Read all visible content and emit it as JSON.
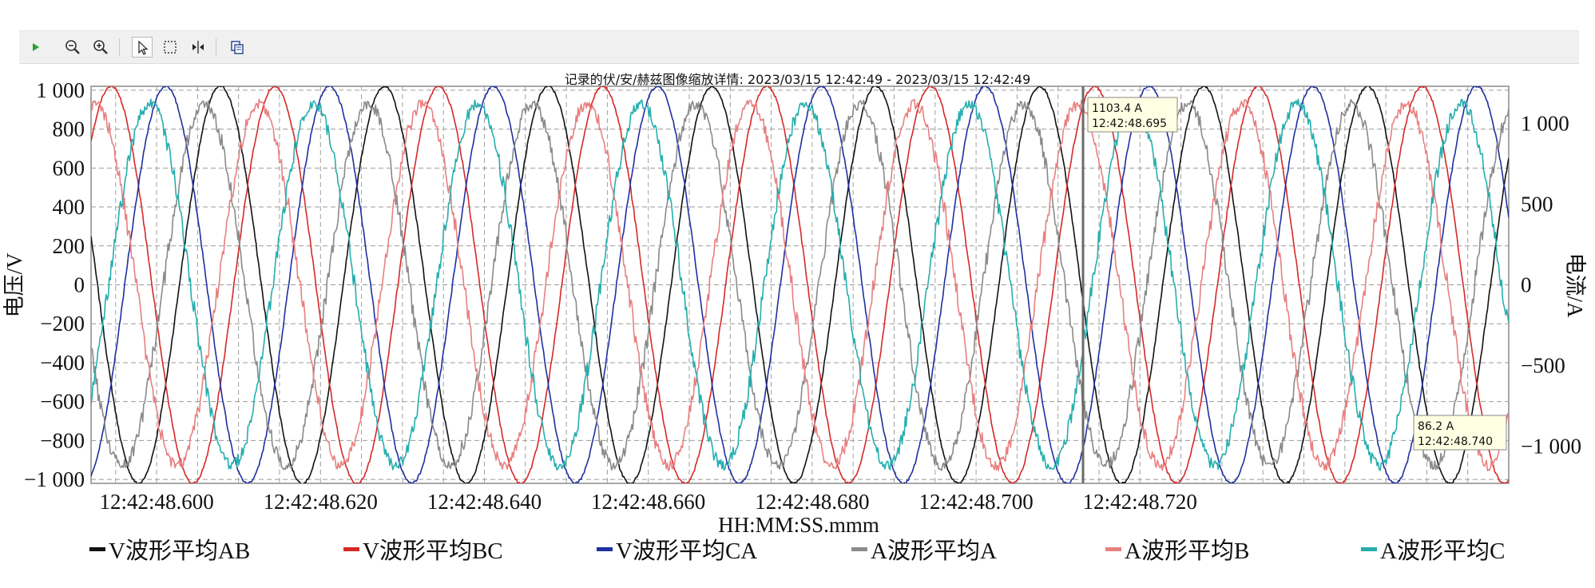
{
  "toolbar": {
    "buttons": [
      {
        "name": "play-button",
        "icon": "play-icon"
      },
      {
        "name": "zoom-out-button",
        "icon": "zoom-out-icon"
      },
      {
        "name": "zoom-in-button",
        "icon": "zoom-in-icon"
      },
      {
        "name": "pointer-tool-button",
        "icon": "cursor-arrow-icon"
      },
      {
        "name": "box-select-tool-button",
        "icon": "selection-box-icon"
      },
      {
        "name": "cursor-measure-tool-button",
        "icon": "cursor-measure-icon"
      },
      {
        "name": "copy-button",
        "icon": "copy-icon"
      }
    ]
  },
  "chart_data": {
    "type": "line",
    "title": "记录的伏/安/赫兹图像缩放详情:  2023/03/15 12:42:49 - 2023/03/15 12:42:49",
    "xlabel": "HH:MM:SS.mmm",
    "ylabel_left": "电压/V",
    "ylabel_right": "电流/A",
    "x_range_ms": [
      48.592,
      48.765
    ],
    "x_time_prefix": "12:42:",
    "x_ticks": [
      "12:42:48.600",
      "12:42:48.620",
      "12:42:48.640",
      "12:42:48.660",
      "12:42:48.680",
      "12:42:48.700",
      "12:42:48.720"
    ],
    "x_tick_values": [
      48.6,
      48.62,
      48.64,
      48.66,
      48.68,
      48.7,
      48.72
    ],
    "ylim_left": [
      -1020,
      1020
    ],
    "yticks_left": [
      1000,
      800,
      600,
      400,
      200,
      0,
      -200,
      -400,
      -600,
      -800,
      -1000
    ],
    "ytick_labels_left": [
      "1 000",
      "800",
      "600",
      "400",
      "200",
      "0",
      "−200",
      "−400",
      "−600",
      "−800",
      "−1 000"
    ],
    "ylim_right": [
      -1230,
      1230
    ],
    "yticks_right": [
      1000,
      500,
      0,
      -500,
      -1000
    ],
    "ytick_labels_right": [
      "1 000",
      "500",
      "0",
      "−500",
      "−1 000"
    ],
    "frequency_hz": 50,
    "grid": true,
    "legend_position": "bottom",
    "series": [
      {
        "name": "V波形平均AB",
        "axis": "left",
        "amplitude": 1020,
        "phase_deg": -50,
        "color": "#111111",
        "noise": 0.01
      },
      {
        "name": "V波形平均BC",
        "axis": "left",
        "amplitude": 1020,
        "phase_deg": -170,
        "color": "#d62828",
        "noise": 0.01
      },
      {
        "name": "V波形平均CA",
        "axis": "left",
        "amplitude": 1020,
        "phase_deg": 70,
        "color": "#1f2fa0",
        "noise": 0.01
      },
      {
        "name": "A波形平均A",
        "axis": "right",
        "amplitude": 1120,
        "phase_deg": -15,
        "color": "#8a8a8a",
        "noise": 0.055
      },
      {
        "name": "A波形平均B",
        "axis": "right",
        "amplitude": 1120,
        "phase_deg": -135,
        "color": "#e88080",
        "noise": 0.055
      },
      {
        "name": "A波形平均C",
        "axis": "right",
        "amplitude": 1120,
        "phase_deg": 105,
        "color": "#26aeae",
        "noise": 0.055
      }
    ],
    "cursor_time": "12:42:48.695",
    "annotations": [
      {
        "value": "1103.4 A",
        "time": "12:42:48.695"
      },
      {
        "value": "86.2 A",
        "time": "12:42:48.740"
      }
    ]
  }
}
